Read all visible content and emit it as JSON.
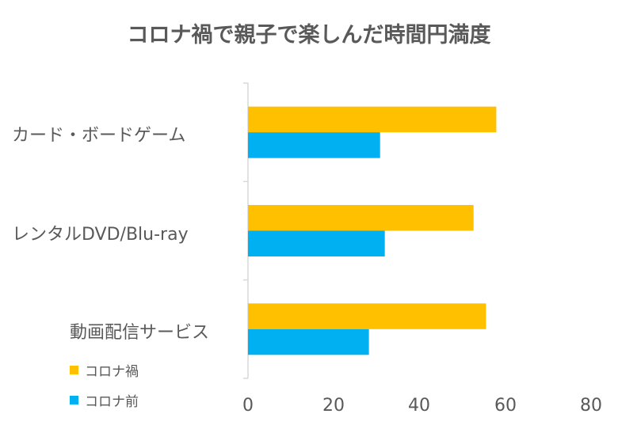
{
  "chart_data": {
    "type": "bar",
    "orientation": "horizontal",
    "title": "コロナ禍で親子で楽しんだ時間円満度",
    "categories": [
      "カード・ボードゲーム",
      "レンタルDVD/Blu-ray",
      "動画配信サービス"
    ],
    "series": [
      {
        "name": "コロナ禍",
        "color": "#FFC000",
        "values": [
          57.9,
          52.6,
          55.5
        ]
      },
      {
        "name": "コロナ前",
        "color": "#00B0F0",
        "values": [
          30.8,
          31.9,
          28.2
        ]
      }
    ],
    "xlim": [
      0,
      80
    ],
    "xticks": [
      "0",
      "20",
      "40",
      "60",
      "80"
    ],
    "xlabel": "",
    "ylabel": "",
    "grid": false,
    "legend_position": "bottom-left"
  }
}
